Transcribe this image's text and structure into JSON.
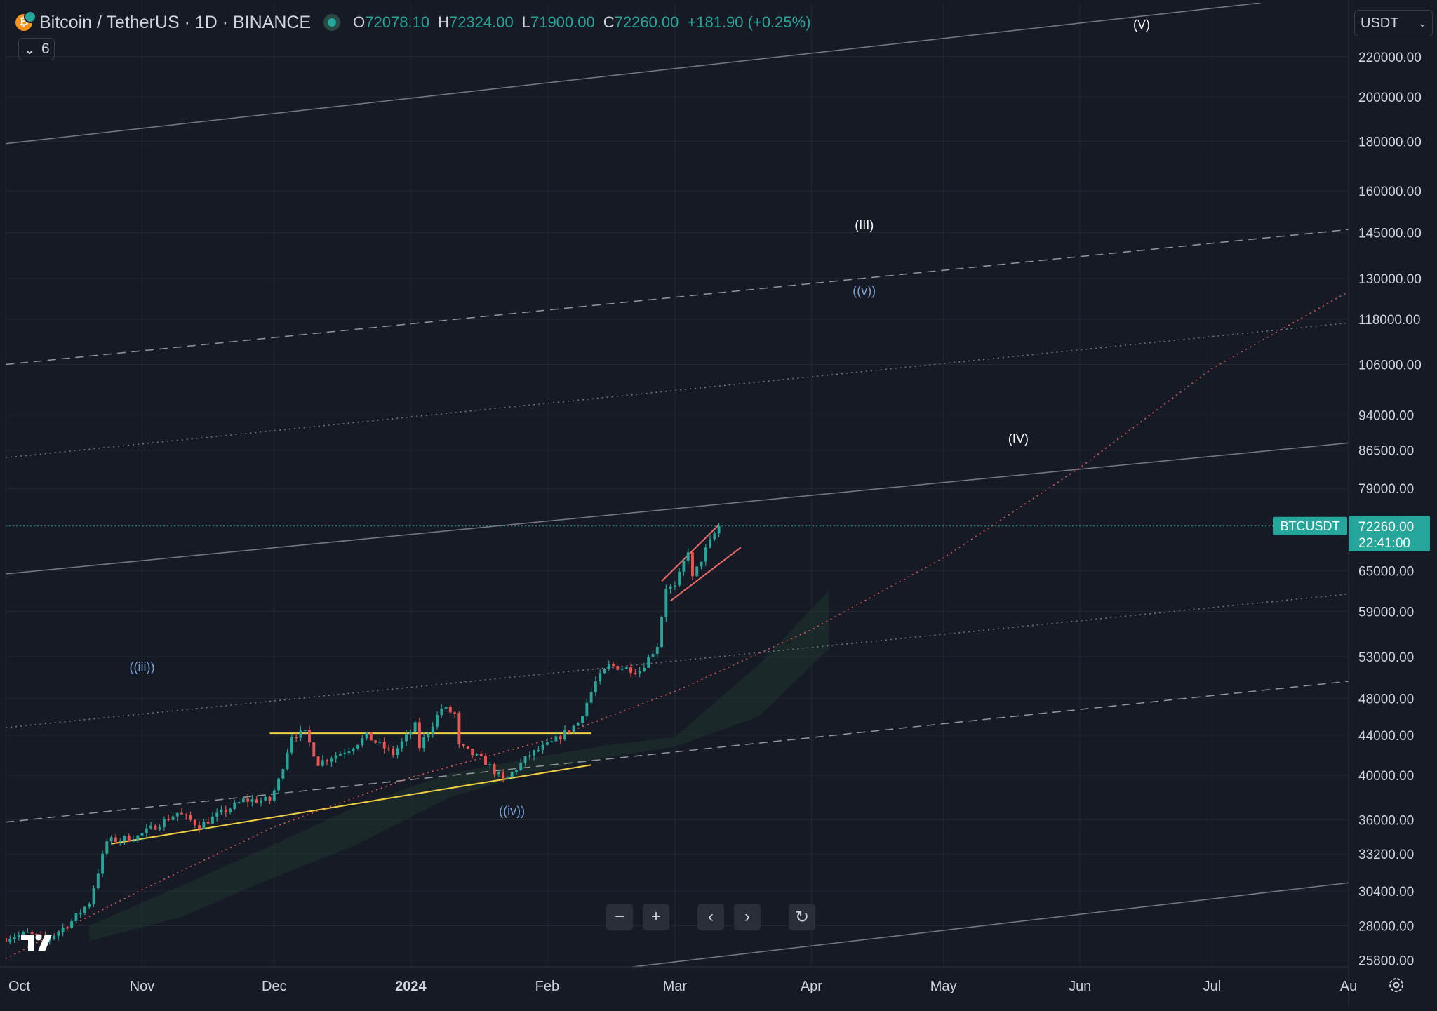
{
  "header": {
    "symbol_title": "Bitcoin / TetherUS · 1D · BINANCE",
    "ohlc": [
      {
        "key": "O",
        "value": "72078.10"
      },
      {
        "key": "H",
        "value": "72324.00"
      },
      {
        "key": "L",
        "value": "71900.00"
      },
      {
        "key": "C",
        "value": "72260.00"
      }
    ],
    "change": "+181.90 (+0.25%)",
    "indicators_count": "6",
    "coin_glyph": "₿",
    "colors": {
      "up": "#26a69a",
      "down": "#ef5350",
      "coin": "#f7931a"
    }
  },
  "currency": {
    "label": "USDT"
  },
  "price_tag": {
    "symbol": "BTCUSDT",
    "price": "72260.00",
    "countdown": "22:41:00"
  },
  "toolbar": {
    "buttons": [
      {
        "name": "zoom-out-button",
        "icon": "minus-icon",
        "glyph": "−"
      },
      {
        "name": "zoom-in-button",
        "icon": "plus-icon",
        "glyph": "+"
      },
      {
        "name": "scroll-left-button",
        "icon": "chevron-left-icon",
        "glyph": "‹"
      },
      {
        "name": "scroll-right-button",
        "icon": "chevron-right-icon",
        "glyph": "›"
      },
      {
        "name": "reset-button",
        "icon": "reset-icon",
        "glyph": "↻"
      }
    ]
  },
  "chart_data": {
    "type": "line",
    "chart_style": "candlestick",
    "title": "Bitcoin / TetherUS · 1D · BINANCE",
    "y_scale": "log",
    "ylim": [
      25400,
      250000
    ],
    "xlim": [
      "2023-10-01",
      "2024-08-01"
    ],
    "grid": true,
    "y_ticks": [
      "220000.00",
      "200000.00",
      "180000.00",
      "160000.00",
      "145000.00",
      "130000.00",
      "118000.00",
      "106000.00",
      "94000.00",
      "86500.00",
      "79000.00",
      "65000.00",
      "59000.00",
      "53000.00",
      "48000.00",
      "44000.00",
      "40000.00",
      "36000.00",
      "33200.00",
      "30400.00",
      "28000.00",
      "25800.00"
    ],
    "x_ticks": [
      {
        "label": "Oct",
        "date": "2023-10-01",
        "bold": false
      },
      {
        "label": "Nov",
        "date": "2023-11-01",
        "bold": false
      },
      {
        "label": "Dec",
        "date": "2023-12-01",
        "bold": false
      },
      {
        "label": "2024",
        "date": "2024-01-01",
        "bold": true
      },
      {
        "label": "Feb",
        "date": "2024-02-01",
        "bold": false
      },
      {
        "label": "Mar",
        "date": "2024-03-01",
        "bold": false
      },
      {
        "label": "Apr",
        "date": "2024-04-01",
        "bold": false
      },
      {
        "label": "May",
        "date": "2024-05-01",
        "bold": false
      },
      {
        "label": "Jun",
        "date": "2024-06-01",
        "bold": false
      },
      {
        "label": "Jul",
        "date": "2024-07-01",
        "bold": false
      },
      {
        "label": "Au",
        "date": "2024-08-01",
        "bold": false
      }
    ],
    "closes": [
      {
        "date": "2023-10-01",
        "close": 27200
      },
      {
        "date": "2023-10-06",
        "close": 27500
      },
      {
        "date": "2023-10-10",
        "close": 27000
      },
      {
        "date": "2023-10-16",
        "close": 28300
      },
      {
        "date": "2023-10-20",
        "close": 29600
      },
      {
        "date": "2023-10-23",
        "close": 33000
      },
      {
        "date": "2023-10-24",
        "close": 34200
      },
      {
        "date": "2023-10-31",
        "close": 34600
      },
      {
        "date": "2023-11-09",
        "close": 36600
      },
      {
        "date": "2023-11-14",
        "close": 35500
      },
      {
        "date": "2023-11-24",
        "close": 37700
      },
      {
        "date": "2023-11-30",
        "close": 37700
      },
      {
        "date": "2023-12-02",
        "close": 39500
      },
      {
        "date": "2023-12-05",
        "close": 44000
      },
      {
        "date": "2023-12-08",
        "close": 44200
      },
      {
        "date": "2023-12-11",
        "close": 41200
      },
      {
        "date": "2023-12-18",
        "close": 42600
      },
      {
        "date": "2023-12-22",
        "close": 43900
      },
      {
        "date": "2023-12-28",
        "close": 42100
      },
      {
        "date": "2024-01-02",
        "close": 45000
      },
      {
        "date": "2024-01-03",
        "close": 42800
      },
      {
        "date": "2024-01-08",
        "close": 46900
      },
      {
        "date": "2024-01-11",
        "close": 46300
      },
      {
        "date": "2024-01-12",
        "close": 42800
      },
      {
        "date": "2024-01-18",
        "close": 41300
      },
      {
        "date": "2024-01-22",
        "close": 39500
      },
      {
        "date": "2024-01-23",
        "close": 39800
      },
      {
        "date": "2024-01-28",
        "close": 42000
      },
      {
        "date": "2024-02-02",
        "close": 43200
      },
      {
        "date": "2024-02-08",
        "close": 45300
      },
      {
        "date": "2024-02-12",
        "close": 49900
      },
      {
        "date": "2024-02-15",
        "close": 51900
      },
      {
        "date": "2024-02-22",
        "close": 51300
      },
      {
        "date": "2024-02-26",
        "close": 54500
      },
      {
        "date": "2024-02-28",
        "close": 62500
      },
      {
        "date": "2024-03-01",
        "close": 62400
      },
      {
        "date": "2024-03-04",
        "close": 68300
      },
      {
        "date": "2024-03-05",
        "close": 63800
      },
      {
        "date": "2024-03-08",
        "close": 68300
      },
      {
        "date": "2024-03-11",
        "close": 72260
      }
    ],
    "annotations": [
      {
        "text": "(V)",
        "date": "2024-06-15",
        "price": 235000,
        "color": "#ffffff"
      },
      {
        "text": "(III)",
        "date": "2024-04-13",
        "price": 146000,
        "color": "#ffffff"
      },
      {
        "text": "((v))",
        "date": "2024-04-13",
        "price": 125000,
        "color": "#7a9fd4"
      },
      {
        "text": "(IV)",
        "date": "2024-05-18",
        "price": 88000,
        "color": "#ffffff"
      },
      {
        "text": "((iii))",
        "date": "2023-11-01",
        "price": 51200,
        "color": "#7a9fd4"
      },
      {
        "text": "((iv))",
        "date": "2024-01-24",
        "price": 36400,
        "color": "#7a9fd4"
      }
    ],
    "trendlines": [
      {
        "style": "solid",
        "color": "#787b86",
        "from": [
          "2023-10-01",
          179000
        ],
        "to": [
          "2024-07-12",
          250000
        ]
      },
      {
        "style": "dashed",
        "color": "#9598a1",
        "from": [
          "2023-10-01",
          106000
        ],
        "to": [
          "2024-08-01",
          146000
        ]
      },
      {
        "style": "dotted",
        "color": "#787b86",
        "from": [
          "2023-10-01",
          85000
        ],
        "to": [
          "2024-08-01",
          117000
        ]
      },
      {
        "style": "solid",
        "color": "#787b86",
        "from": [
          "2023-10-01",
          64500
        ],
        "to": [
          "2024-08-01",
          88000
        ]
      },
      {
        "style": "dotted",
        "color": "#787b86",
        "from": [
          "2023-10-01",
          44800
        ],
        "to": [
          "2024-08-01",
          61500
        ]
      },
      {
        "style": "dashed",
        "color": "#9598a1",
        "from": [
          "2023-10-01",
          35800
        ],
        "to": [
          "2024-08-01",
          50000
        ]
      },
      {
        "style": "solid",
        "color": "#787b86",
        "from": [
          "2024-02-01",
          24800
        ],
        "to": [
          "2024-08-01",
          31000
        ]
      },
      {
        "style": "solid",
        "color": "#f0d042",
        "from": [
          "2023-11-30",
          44200
        ],
        "to": [
          "2024-02-11",
          44200
        ]
      },
      {
        "style": "solid",
        "color": "#f0d042",
        "from": [
          "2023-10-25",
          34000
        ],
        "to": [
          "2024-02-11",
          41000
        ]
      },
      {
        "style": "solid",
        "color": "#f06a6a",
        "from": [
          "2024-02-27",
          63400
        ],
        "to": [
          "2024-03-11",
          72500
        ]
      },
      {
        "style": "solid",
        "color": "#f06a6a",
        "from": [
          "2024-02-29",
          60500
        ],
        "to": [
          "2024-03-16",
          68700
        ]
      }
    ],
    "curve": {
      "style": "dotted",
      "color": "#e05a5a",
      "points": [
        [
          "2023-10-01",
          25900
        ],
        [
          "2023-11-01",
          30500
        ],
        [
          "2023-12-01",
          35400
        ],
        [
          "2024-01-01",
          39800
        ],
        [
          "2024-02-01",
          43500
        ],
        [
          "2024-03-01",
          48800
        ],
        [
          "2024-04-01",
          56500
        ],
        [
          "2024-05-01",
          67000
        ],
        [
          "2024-06-01",
          83000
        ],
        [
          "2024-07-01",
          105000
        ],
        [
          "2024-08-01",
          126000
        ]
      ]
    },
    "last_price": 72260
  }
}
